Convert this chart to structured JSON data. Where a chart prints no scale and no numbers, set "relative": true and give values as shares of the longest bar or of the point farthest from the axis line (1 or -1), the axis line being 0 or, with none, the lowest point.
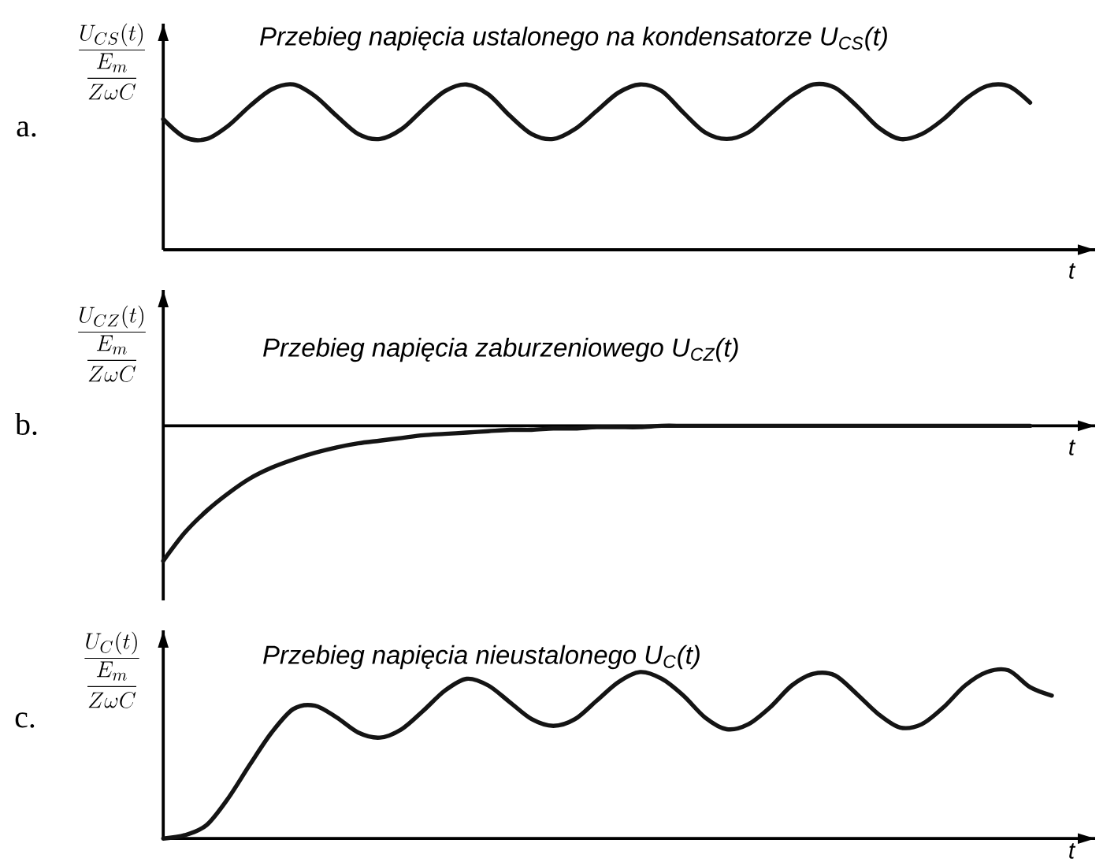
{
  "chart_data": [
    {
      "type": "line",
      "title": "Przebieg napięcia ustalonego na kondensatorze U$_{CS}$(t)",
      "xlabel": "t",
      "ylabel": "\\frac{U_{CS}(t)}{\\dfrac{E_m}{Z\\omega C}}",
      "annotations": [
        "a."
      ],
      "relative": true,
      "marker": "none",
      "color": "#141414",
      "categories": [
        null,
        null,
        null,
        null,
        null,
        null,
        null,
        null,
        null,
        null,
        null,
        null,
        null,
        null,
        null,
        null,
        null,
        null,
        null,
        null,
        null,
        null,
        null,
        null,
        null,
        null,
        null,
        null,
        null,
        null,
        null,
        null,
        null,
        null,
        null,
        null,
        null,
        null,
        null,
        null,
        null
      ],
      "values": [
        0.79,
        0.68,
        0.67,
        0.75,
        0.87,
        0.97,
        1.0,
        0.93,
        0.81,
        0.7,
        0.67,
        0.73,
        0.85,
        0.96,
        1.0,
        0.94,
        0.81,
        0.7,
        0.67,
        0.73,
        0.84,
        0.95,
        1.0,
        0.96,
        0.83,
        0.71,
        0.67,
        0.71,
        0.82,
        0.93,
        1.0,
        0.98,
        0.87,
        0.74,
        0.67,
        0.7,
        0.79,
        0.91,
        0.99,
        0.99,
        0.89
      ]
    },
    {
      "type": "line",
      "title": "Przebieg napięcia zaburzeniowego U$_{CZ}$(t)",
      "xlabel": "t",
      "ylabel": "\\frac{U_{CZ}(t)}{\\dfrac{E_m}{Z\\omega C}}",
      "annotations": [
        "b."
      ],
      "relative": true,
      "marker": "none",
      "color": "#141414",
      "categories": [
        null,
        null,
        null,
        null,
        null,
        null,
        null,
        null,
        null,
        null,
        null,
        null,
        null,
        null,
        null,
        null,
        null,
        null,
        null,
        null,
        null,
        null,
        null,
        null,
        null,
        null,
        null,
        null,
        null,
        null,
        null,
        null,
        null,
        null,
        null,
        null,
        null,
        null,
        null,
        null,
        null
      ],
      "values": [
        -1.0,
        -0.79,
        -0.63,
        -0.5,
        -0.39,
        -0.31,
        -0.25,
        -0.2,
        -0.16,
        -0.13,
        -0.11,
        -0.09,
        -0.07,
        -0.06,
        -0.05,
        -0.04,
        -0.03,
        -0.03,
        -0.02,
        -0.02,
        -0.01,
        -0.01,
        -0.01,
        0.0,
        0.0,
        0.0,
        0.0,
        0.0,
        0.0,
        0.0,
        0.0,
        0.0,
        0.0,
        0.0,
        0.0,
        0.0,
        0.0,
        0.0,
        0.0,
        0.0,
        0.0
      ]
    },
    {
      "type": "line",
      "title": "Przebieg napięcia nieustalonego U$_{C}$(t)",
      "xlabel": "t",
      "ylabel": "\\frac{U_{C}(t)}{\\dfrac{E_m}{Z\\omega C}}",
      "annotations": [
        "c."
      ],
      "relative": true,
      "marker": "none",
      "color": "#141414",
      "categories": [
        null,
        null,
        null,
        null,
        null,
        null,
        null,
        null,
        null,
        null,
        null,
        null,
        null,
        null,
        null,
        null,
        null,
        null,
        null,
        null,
        null,
        null,
        null,
        null,
        null,
        null,
        null,
        null,
        null,
        null,
        null,
        null,
        null,
        null,
        null,
        null,
        null,
        null,
        null,
        null,
        null,
        null
      ],
      "values": [
        0.0,
        0.02,
        0.08,
        0.24,
        0.44,
        0.63,
        0.77,
        0.79,
        0.72,
        0.63,
        0.6,
        0.65,
        0.76,
        0.88,
        0.95,
        0.91,
        0.81,
        0.71,
        0.67,
        0.71,
        0.82,
        0.93,
        0.99,
        0.95,
        0.85,
        0.72,
        0.65,
        0.68,
        0.78,
        0.91,
        0.98,
        0.97,
        0.86,
        0.74,
        0.66,
        0.68,
        0.78,
        0.91,
        0.99,
        1.0,
        0.9,
        0.85
      ]
    }
  ]
}
